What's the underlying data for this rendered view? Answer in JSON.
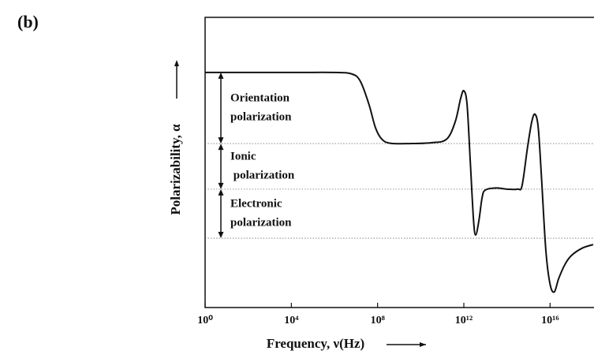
{
  "chart_data": {
    "type": "line",
    "panel_label": "(b)",
    "x_label": "Frequency, ν(Hz)",
    "y_label": "Polarizability, α",
    "log_x": true,
    "xlim": [
      1,
      1e+18
    ],
    "ylim": [
      0,
      100
    ],
    "xticks": [
      {
        "value": 1,
        "label": "10⁰"
      },
      {
        "value": 10000.0,
        "label": "10⁴"
      },
      {
        "value": 100000000.0,
        "label": "10⁸"
      },
      {
        "value": 1000000000000.0,
        "label": "10¹²"
      },
      {
        "value": 1e+16,
        "label": "10¹⁶"
      }
    ],
    "color": "#111111",
    "x": [
      1,
      10000.0,
      1000000.0,
      6300000.0,
      15800000.0,
      39800000.0,
      79400000.0,
      158000000.0,
      398000000.0,
      3160000000.0,
      31600000000.0,
      158000000000.0,
      398000000000.0,
      708000000000.0,
      1000000000000.0,
      1410000000000.0,
      2000000000000.0,
      2820000000000.0,
      3550000000000.0,
      5010000000000.0,
      7080000000000.0,
      10000000000000.0,
      31600000000000.0,
      100000000000000.0,
      316000000000000.0,
      501000000000000.0,
      891000000000000.0,
      1410000000000000.0,
      2000000000000000.0,
      2820000000000000.0,
      3980000000000000.0,
      6310000000000000.0,
      1e+16,
      1.58e+16,
      2.51e+16,
      5.01e+16,
      1e+17,
      3.16e+17,
      1e+18
    ],
    "values": [
      81,
      81,
      81,
      80.5,
      78,
      70,
      62,
      58,
      56.6,
      56.5,
      56.8,
      58,
      64,
      72,
      74.7,
      70,
      50,
      30,
      25,
      30,
      38,
      40.5,
      41.2,
      40.8,
      40.8,
      42,
      55,
      64,
      66.6,
      62,
      45,
      20,
      8,
      5.4,
      10,
      15,
      18,
      20.5,
      21.7
    ],
    "reference_lines": [
      56.5,
      40.8,
      23.9
    ],
    "bands": [
      {
        "lines": [
          "Orientation",
          "polarization"
        ],
        "from": 81,
        "to": 56.5
      },
      {
        "lines": [
          "Ionic",
          " polarization"
        ],
        "from": 56.5,
        "to": 40.8
      },
      {
        "lines": [
          "Electronic",
          "polarization"
        ],
        "from": 40.8,
        "to": 23.9
      }
    ]
  }
}
